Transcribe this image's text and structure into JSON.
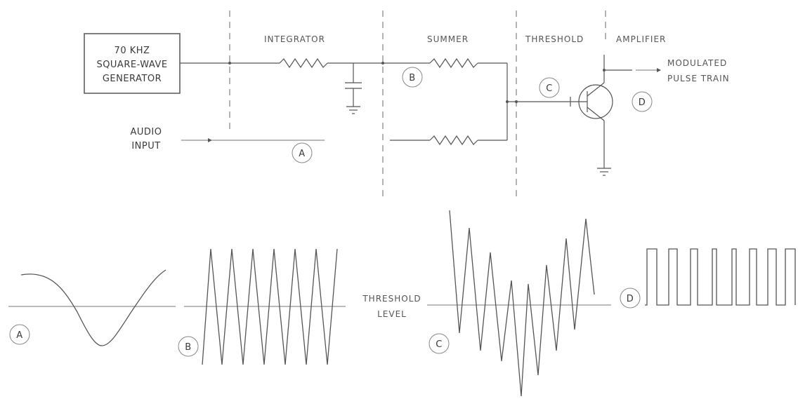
{
  "generator": {
    "line1": "70 KHZ",
    "line2": "SQUARE-WAVE",
    "line3": "GENERATOR"
  },
  "stages": {
    "integrator": "INTEGRATOR",
    "summer": "SUMMER",
    "threshold": "THRESHOLD",
    "amplifier": "AMPLIFIER"
  },
  "audio_input": {
    "line1": "AUDIO",
    "line2": "INPUT"
  },
  "output": {
    "line1": "MODULATED",
    "line2": "PULSE TRAIN"
  },
  "points": {
    "a": "A",
    "b": "B",
    "c": "C",
    "d": "D"
  },
  "threshold_level": {
    "line1": "THRESHOLD",
    "line2": "LEVEL"
  },
  "waveforms": {
    "a": "sine",
    "b": "triangle",
    "c": "triangle-plus-audio",
    "d": "pulse-width-modulated"
  },
  "colors": {
    "ink": "#555555",
    "background": "#ffffff"
  }
}
